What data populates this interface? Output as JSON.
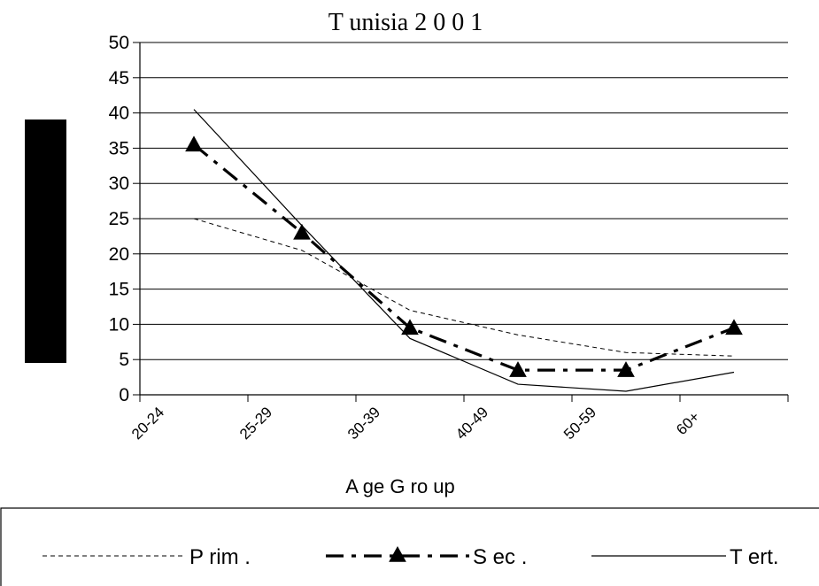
{
  "chart_data": {
    "type": "line",
    "title": "T unisia 2 0 0 1",
    "xlabel": "A ge G ro up",
    "ylabel": "",
    "categories": [
      "20-24",
      "25-29",
      "30-39",
      "40-49",
      "50-59",
      "60+"
    ],
    "ylim": [
      0,
      50
    ],
    "yticks": [
      0,
      5,
      10,
      15,
      20,
      25,
      30,
      35,
      40,
      45,
      50
    ],
    "grid": true,
    "legend_position": "bottom",
    "series": [
      {
        "name": "P rim .",
        "values": [
          25,
          20.5,
          12,
          8.5,
          6,
          5.5
        ],
        "color": "#000000",
        "style": "thin-dashed",
        "marker": "none"
      },
      {
        "name": "S ec .",
        "values": [
          35.5,
          23,
          9.5,
          3.5,
          3.5,
          9.5
        ],
        "color": "#000000",
        "style": "thick-dashdot",
        "marker": "triangle"
      },
      {
        "name": "T ert.",
        "values": [
          40.5,
          24,
          8,
          1.5,
          0.5,
          3.2
        ],
        "color": "#000000",
        "style": "thin-solid",
        "marker": "none"
      }
    ]
  }
}
